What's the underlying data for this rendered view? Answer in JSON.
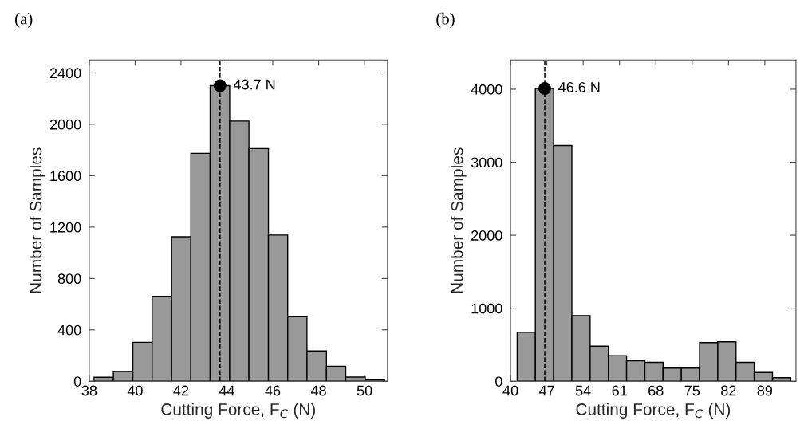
{
  "chart_data": [
    {
      "type": "histogram",
      "title": "(a)",
      "xlabel": "Cutting Force, F$_{C}$ (N)",
      "ylabel": "Number of Samples",
      "xlim": [
        38,
        51
      ],
      "xticks": [
        38,
        40,
        42,
        44,
        46,
        48,
        50
      ],
      "ylim": [
        0,
        2500
      ],
      "yticks": [
        0,
        400,
        800,
        1200,
        1600,
        2000,
        2400
      ],
      "grid": false,
      "legend": false,
      "series": [
        {
          "color": "#999999",
          "bins": [
            38.21,
            39.05,
            39.9,
            40.74,
            41.59,
            42.43,
            43.27,
            44.12,
            44.96,
            45.81,
            46.65,
            47.49,
            48.34,
            49.18,
            50.03,
            50.87
          ],
          "values": [
            31,
            75,
            303,
            661,
            1125,
            1774,
            2300,
            2025,
            1811,
            1138,
            502,
            236,
            116,
            33,
            12
          ]
        },
        {
          "type": "scatter",
          "color": "#000000",
          "marker": "circle",
          "x": [
            43.7
          ],
          "values": [
            2300
          ]
        }
      ],
      "ref_lines": [
        {
          "axis": "x",
          "value": 43.7,
          "color": "#000000",
          "line_style": "dashed"
        }
      ],
      "annotations": [
        {
          "text": "43.7 N",
          "x": 43.7,
          "y": 2300
        }
      ]
    },
    {
      "type": "histogram",
      "title": "(b)",
      "xlabel": "Cutting Force, F$_{C}$ (N)",
      "ylabel": "Number of Samples",
      "xlim": [
        40,
        95
      ],
      "xticks": [
        40,
        47,
        54,
        61,
        68,
        75,
        82,
        89
      ],
      "ylim": [
        0,
        4400
      ],
      "yticks": [
        0,
        1000,
        2000,
        3000,
        4000
      ],
      "grid": false,
      "legend": false,
      "series": [
        {
          "color": "#999999",
          "bins": [
            41.28,
            44.79,
            48.31,
            51.82,
            55.34,
            58.85,
            62.36,
            65.88,
            69.39,
            72.91,
            76.42,
            79.93,
            83.45,
            86.96,
            90.48,
            93.99
          ],
          "values": [
            670,
            4010,
            3230,
            900,
            480,
            350,
            280,
            260,
            180,
            180,
            530,
            540,
            260,
            120,
            50
          ]
        },
        {
          "type": "scatter",
          "color": "#000000",
          "marker": "circle",
          "x": [
            46.6
          ],
          "values": [
            4010
          ]
        }
      ],
      "ref_lines": [
        {
          "axis": "x",
          "value": 46.6,
          "color": "#000000",
          "line_style": "dashed"
        }
      ],
      "annotations": [
        {
          "text": "46.6 N",
          "x": 46.6,
          "y": 4010
        }
      ]
    }
  ]
}
